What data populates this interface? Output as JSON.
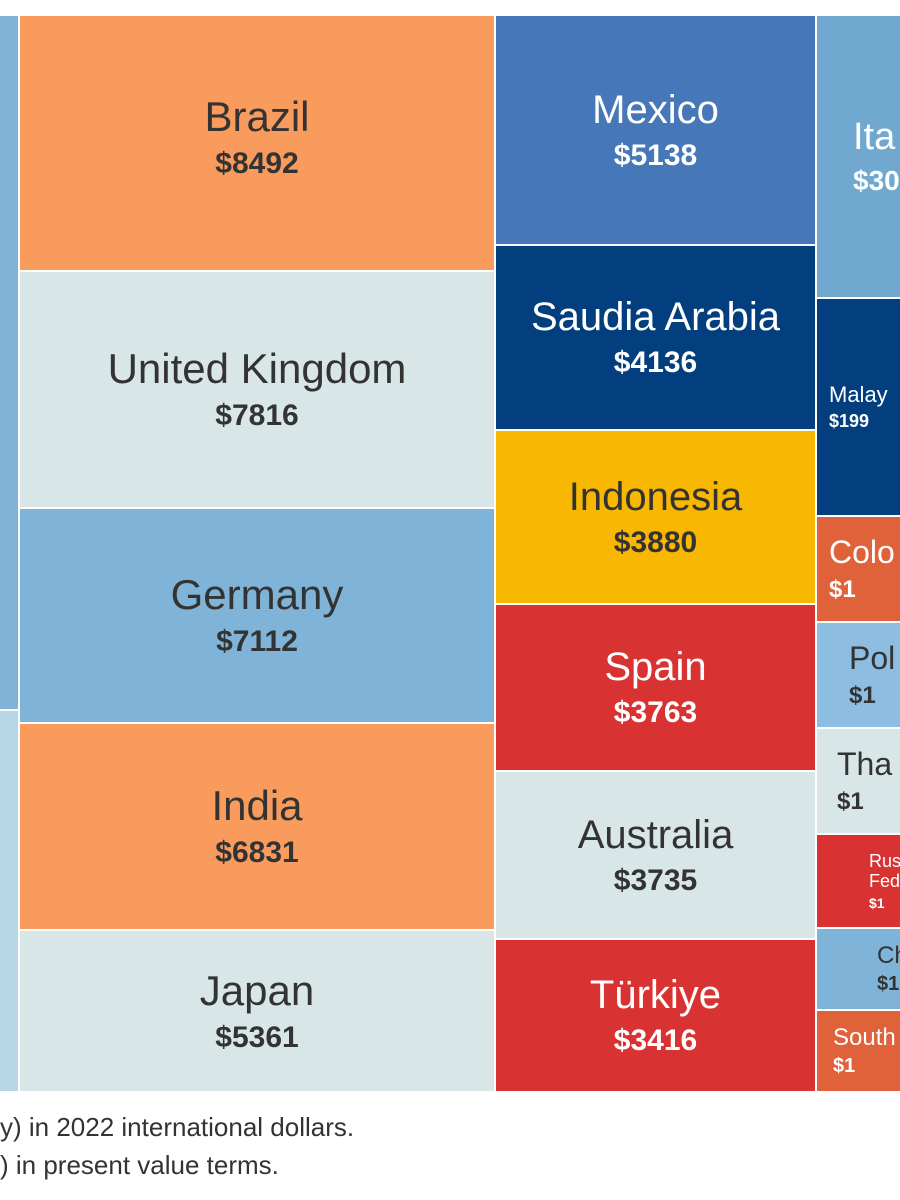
{
  "chart_data": {
    "type": "treemap",
    "title": "",
    "cells": [
      {
        "name": "",
        "value": "",
        "color": "#7fb3d8",
        "text_color": "#333333"
      },
      {
        "name": "",
        "value": "",
        "color": "#b7d6e8",
        "text_color": "#333333"
      },
      {
        "name": "Brazil",
        "value": "$8492",
        "color": "#f89b5c",
        "text_color": "#333333"
      },
      {
        "name": "United Kingdom",
        "value": "$7816",
        "color": "#d9e6e8",
        "text_color": "#333333"
      },
      {
        "name": "Germany",
        "value": "$7112",
        "color": "#7fb3d8",
        "text_color": "#333333"
      },
      {
        "name": "India",
        "value": "$6831",
        "color": "#f89b5c",
        "text_color": "#333333"
      },
      {
        "name": "Japan",
        "value": "$5361",
        "color": "#d9e6e8",
        "text_color": "#333333"
      },
      {
        "name": "Mexico",
        "value": "$5138",
        "color": "#4677b8",
        "text_color": "#ffffff"
      },
      {
        "name": "Saudia Arabia",
        "value": "$4136",
        "color": "#033f7e",
        "text_color": "#ffffff"
      },
      {
        "name": "Indonesia",
        "value": "$3880",
        "color": "#f8b700",
        "text_color": "#333333"
      },
      {
        "name": "Spain",
        "value": "$3763",
        "color": "#d93232",
        "text_color": "#ffffff"
      },
      {
        "name": "Australia",
        "value": "$3735",
        "color": "#d9e6e8",
        "text_color": "#333333"
      },
      {
        "name": "Türkiye",
        "value": "$3416",
        "color": "#d93232",
        "text_color": "#ffffff"
      },
      {
        "name": "Ita",
        "value": "$30",
        "color": "#70a8d0",
        "text_color": "#ffffff"
      },
      {
        "name": "Malay",
        "value": "$199",
        "color": "#033f7e",
        "text_color": "#ffffff"
      },
      {
        "name": "Colo",
        "value": "$1",
        "color": "#e0623b",
        "text_color": "#ffffff"
      },
      {
        "name": "Pol",
        "value": "$1",
        "color": "#8dbde0",
        "text_color": "#333333"
      },
      {
        "name": "Tha",
        "value": "$1",
        "color": "#d9e6e8",
        "text_color": "#333333"
      },
      {
        "name": "Rus\nFede",
        "value": "$1",
        "color": "#d93232",
        "text_color": "#ffffff"
      },
      {
        "name": "Ch",
        "value": "$1",
        "color": "#7fb3d8",
        "text_color": "#333333"
      },
      {
        "name": "South",
        "value": "$1",
        "color": "#e0623b",
        "text_color": "#ffffff"
      }
    ]
  },
  "notes": [
    "y) in 2022 international dollars.",
    ") in present value terms."
  ]
}
